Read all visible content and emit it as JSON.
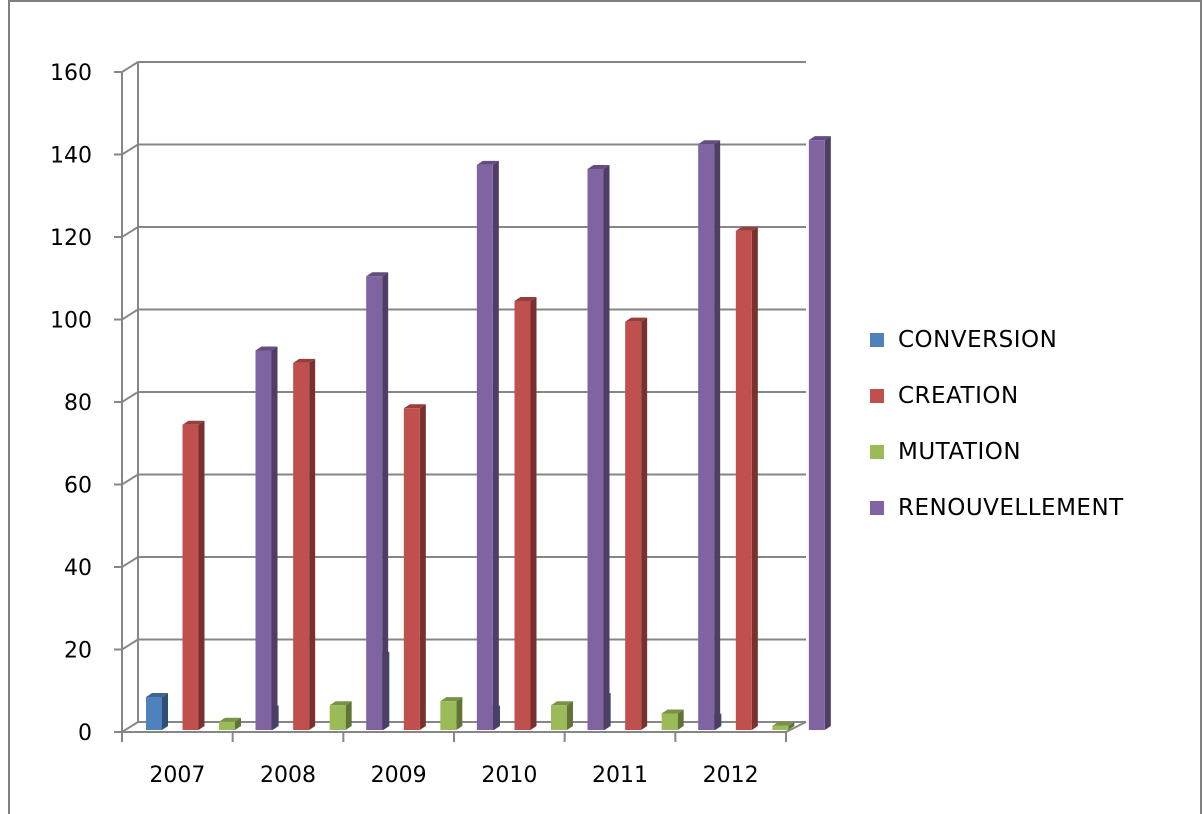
{
  "chart_data": {
    "type": "bar",
    "categories": [
      "2007",
      "2008",
      "2009",
      "2010",
      "2011",
      "2012"
    ],
    "series": [
      {
        "name": "CONVERSION",
        "color": "#4f81bd",
        "values": [
          8,
          5,
          18,
          5,
          8,
          3
        ]
      },
      {
        "name": "CREATION",
        "color": "#c0504d",
        "values": [
          74,
          89,
          78,
          104,
          99,
          121
        ]
      },
      {
        "name": "MUTATION",
        "color": "#9bbb59",
        "values": [
          2,
          6,
          7,
          6,
          4,
          1
        ]
      },
      {
        "name": "RENOUVELLEMENT",
        "color": "#8064a2",
        "values": [
          92,
          110,
          137,
          136,
          142,
          143
        ]
      }
    ],
    "yticks": [
      "0",
      "20",
      "40",
      "60",
      "80",
      "100",
      "120",
      "140",
      "160"
    ],
    "ylim": [
      0,
      160
    ],
    "grid": true,
    "legend_position": "right",
    "style": "3d-clustered-column",
    "title": "",
    "xlabel": "",
    "ylabel": ""
  }
}
